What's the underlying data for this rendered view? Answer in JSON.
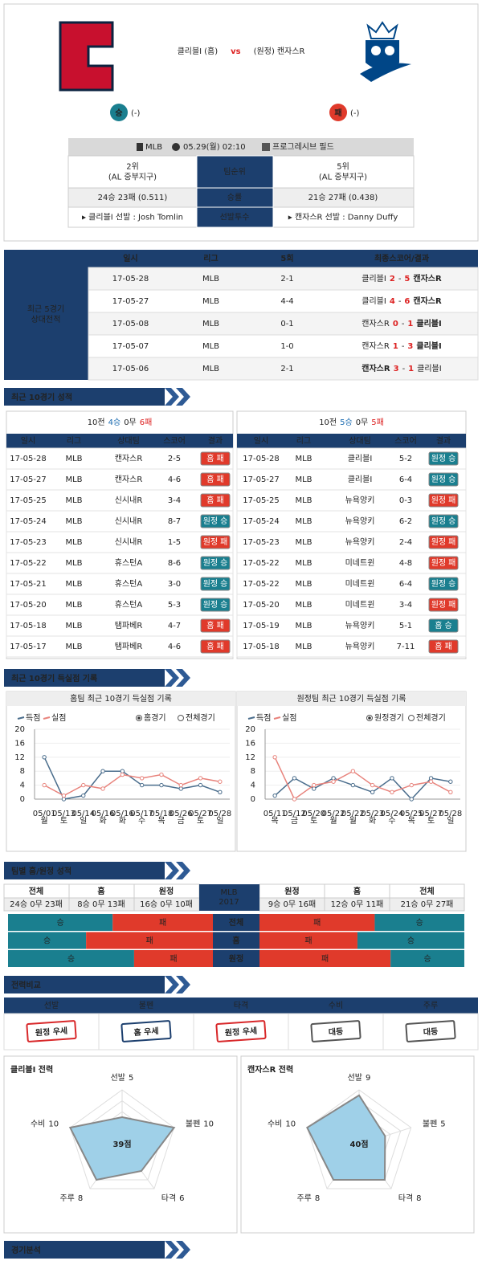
{
  "header": {
    "home_team": "클리블I",
    "home_tag": "(홈)",
    "vs": "vs",
    "away_tag": "(원정)",
    "away_team": "캔자스R",
    "home_result": "승",
    "home_result_detail": "(-)",
    "away_result": "패",
    "away_result_detail": "(-)"
  },
  "outcome_colors": {
    "승": "#1a7f8f",
    "패": "#e03a2b"
  },
  "info": {
    "league": "MLB",
    "datetime": "05.29(월) 02:10",
    "stadium": "프로그레시브 필드",
    "rows": [
      {
        "label": "팀순위",
        "home": [
          "2위",
          "(AL 중부지구)"
        ],
        "away": [
          "5위",
          "(AL 중부지구)"
        ]
      },
      {
        "label": "승률",
        "home": [
          "24승 23패 (0.511)"
        ],
        "away": [
          "21승 27패 (0.438)"
        ]
      },
      {
        "label": "선발투수",
        "home": [
          "▸ 클리블I 선발 : Josh Tomlin"
        ],
        "away": [
          "▸ 캔자스R 선발 : Danny Duffy"
        ]
      }
    ]
  },
  "h2h": {
    "label": [
      "최근 5경기",
      "상대전적"
    ],
    "headers": [
      "일시",
      "리그",
      "5회",
      "최종스코어/결과"
    ],
    "score_sep": "-",
    "rows": [
      {
        "date": "17-05-28",
        "league": "MLB",
        "inning5": "2-1",
        "left": "클리블I",
        "left_score": 2,
        "right_score": 5,
        "right": "캔자스R"
      },
      {
        "date": "17-05-27",
        "league": "MLB",
        "inning5": "4-4",
        "left": "클리블I",
        "left_score": 4,
        "right_score": 6,
        "right": "캔자스R"
      },
      {
        "date": "17-05-08",
        "league": "MLB",
        "inning5": "0-1",
        "left": "캔자스R",
        "left_score": 0,
        "right_score": 1,
        "right": "클리블I"
      },
      {
        "date": "17-05-07",
        "league": "MLB",
        "inning5": "1-0",
        "left": "캔자스R",
        "left_score": 1,
        "right_score": 3,
        "right": "클리블I"
      },
      {
        "date": "17-05-06",
        "league": "MLB",
        "inning5": "2-1",
        "left": "캔자스R",
        "left_score": 3,
        "right_score": 1,
        "right": "클리블I"
      }
    ]
  },
  "sections": {
    "recent10": "최근 10경기 성적",
    "scoring": "최근 10경기 득실점 기록",
    "splits": "팀별 홈/원정 성적",
    "power": "전력비교",
    "analysis": "경기분석"
  },
  "recent10": {
    "headers": [
      "일시",
      "리그",
      "상대팀",
      "스코어",
      "결과"
    ],
    "home": {
      "summary": [
        "10전",
        "4승",
        "0무",
        "6패"
      ],
      "rows": [
        {
          "date": "17-05-28",
          "league": "MLB",
          "opponent": "캔자스R",
          "score": "2-5",
          "venue": "홈",
          "outcome": "패"
        },
        {
          "date": "17-05-27",
          "league": "MLB",
          "opponent": "캔자스R",
          "score": "4-6",
          "venue": "홈",
          "outcome": "패"
        },
        {
          "date": "17-05-25",
          "league": "MLB",
          "opponent": "신시내R",
          "score": "3-4",
          "venue": "홈",
          "outcome": "패"
        },
        {
          "date": "17-05-24",
          "league": "MLB",
          "opponent": "신시내R",
          "score": "8-7",
          "venue": "원정",
          "outcome": "승"
        },
        {
          "date": "17-05-23",
          "league": "MLB",
          "opponent": "신시내R",
          "score": "1-5",
          "venue": "원정",
          "outcome": "패"
        },
        {
          "date": "17-05-22",
          "league": "MLB",
          "opponent": "휴스턴A",
          "score": "8-6",
          "venue": "원정",
          "outcome": "승"
        },
        {
          "date": "17-05-21",
          "league": "MLB",
          "opponent": "휴스턴A",
          "score": "3-0",
          "venue": "원정",
          "outcome": "승"
        },
        {
          "date": "17-05-20",
          "league": "MLB",
          "opponent": "휴스턴A",
          "score": "5-3",
          "venue": "원정",
          "outcome": "승"
        },
        {
          "date": "17-05-18",
          "league": "MLB",
          "opponent": "탬파베R",
          "score": "4-7",
          "venue": "홈",
          "outcome": "패"
        },
        {
          "date": "17-05-17",
          "league": "MLB",
          "opponent": "탬파베R",
          "score": "4-6",
          "venue": "홈",
          "outcome": "패"
        }
      ]
    },
    "away": {
      "summary": [
        "10전",
        "5승",
        "0무",
        "5패"
      ],
      "rows": [
        {
          "date": "17-05-28",
          "league": "MLB",
          "opponent": "클리블I",
          "score": "5-2",
          "venue": "원정",
          "outcome": "승"
        },
        {
          "date": "17-05-27",
          "league": "MLB",
          "opponent": "클리블I",
          "score": "6-4",
          "venue": "원정",
          "outcome": "승"
        },
        {
          "date": "17-05-25",
          "league": "MLB",
          "opponent": "뉴욕양키",
          "score": "0-3",
          "venue": "원정",
          "outcome": "패"
        },
        {
          "date": "17-05-24",
          "league": "MLB",
          "opponent": "뉴욕양키",
          "score": "6-2",
          "venue": "원정",
          "outcome": "승"
        },
        {
          "date": "17-05-23",
          "league": "MLB",
          "opponent": "뉴욕양키",
          "score": "2-4",
          "venue": "원정",
          "outcome": "패"
        },
        {
          "date": "17-05-22",
          "league": "MLB",
          "opponent": "미네트윈",
          "score": "4-8",
          "venue": "원정",
          "outcome": "패"
        },
        {
          "date": "17-05-22",
          "league": "MLB",
          "opponent": "미네트윈",
          "score": "6-4",
          "venue": "원정",
          "outcome": "승"
        },
        {
          "date": "17-05-20",
          "league": "MLB",
          "opponent": "미네트윈",
          "score": "3-4",
          "venue": "원정",
          "outcome": "패"
        },
        {
          "date": "17-05-19",
          "league": "MLB",
          "opponent": "뉴욕양키",
          "score": "5-1",
          "venue": "홈",
          "outcome": "승"
        },
        {
          "date": "17-05-18",
          "league": "MLB",
          "opponent": "뉴욕양키",
          "score": "7-11",
          "venue": "홈",
          "outcome": "패"
        }
      ]
    }
  },
  "chart_data": [
    {
      "type": "line",
      "title": "홈팀 최근 10경기 득실점 기록",
      "options": [
        "홈경기",
        "전체경기"
      ],
      "selected": 0,
      "categories": [
        "05/01",
        "05/13",
        "05/14",
        "05/16",
        "05/16",
        "05/17",
        "05/18",
        "05/26",
        "05/27",
        "05/28"
      ],
      "category_sublabels": [
        "월",
        "토",
        "일",
        "화",
        "화",
        "수",
        "목",
        "금",
        "토",
        "일"
      ],
      "ylim": [
        0,
        20
      ],
      "yticks": [
        0,
        4,
        8,
        12,
        16,
        20
      ],
      "grid": true,
      "series": [
        {
          "name": "득점",
          "color": "#4a6d8c",
          "values": [
            12,
            0,
            1,
            8,
            8,
            4,
            4,
            3,
            4,
            2
          ]
        },
        {
          "name": "실점",
          "color": "#e8837c",
          "values": [
            4,
            1,
            4,
            3,
            7,
            6,
            7,
            4,
            6,
            5
          ]
        }
      ]
    },
    {
      "type": "line",
      "title": "원정팀 최근 10경기 득실점 기록",
      "options": [
        "원정경기",
        "전체경기"
      ],
      "selected": 0,
      "categories": [
        "05/11",
        "05/12",
        "05/20",
        "05/22",
        "05/22",
        "05/23",
        "05/24",
        "05/25",
        "05/27",
        "05/28"
      ],
      "category_sublabels": [
        "목",
        "금",
        "토",
        "월",
        "월",
        "화",
        "수",
        "목",
        "토",
        "일"
      ],
      "ylim": [
        0,
        20
      ],
      "yticks": [
        0,
        4,
        8,
        12,
        16,
        20
      ],
      "grid": true,
      "series": [
        {
          "name": "득점",
          "color": "#4a6d8c",
          "values": [
            1,
            6,
            3,
            6,
            4,
            2,
            6,
            0,
            6,
            5
          ]
        },
        {
          "name": "실점",
          "color": "#e8837c",
          "values": [
            12,
            0,
            4,
            5,
            8,
            4,
            2,
            4,
            5,
            2
          ]
        }
      ]
    },
    {
      "type": "radar",
      "title": "클리블I 전력",
      "categories": [
        "선발",
        "불펜",
        "타격",
        "주루",
        "수비"
      ],
      "values": [
        5,
        10,
        6,
        8,
        10
      ],
      "ylim": [
        0,
        10
      ],
      "total_label": "39점",
      "color": "#9fd0e8"
    },
    {
      "type": "radar",
      "title": "캔자스R 전력",
      "categories": [
        "선발",
        "불펜",
        "타격",
        "주루",
        "수비"
      ],
      "values": [
        9,
        5,
        8,
        8,
        10
      ],
      "ylim": [
        0,
        10
      ],
      "total_label": "40점",
      "color": "#9fd0e8"
    }
  ],
  "splits": {
    "home_headers": [
      "전체",
      "홈",
      "원정"
    ],
    "home_records": [
      "24승 0무 23패",
      "8승 0무 13패",
      "16승 0무 10패"
    ],
    "center": [
      "MLB",
      "2017"
    ],
    "away_headers": [
      "원정",
      "홈",
      "전체"
    ],
    "away_records": [
      "9승 0무 16패",
      "12승 0무 11패",
      "21승 0무 27패"
    ],
    "bar_labels": [
      "승",
      "패"
    ],
    "rows": [
      {
        "label": "전체",
        "home_wins": 24,
        "home_losses": 23,
        "away_wins": 21,
        "away_losses": 27
      },
      {
        "label": "홈",
        "home_wins": 8,
        "home_losses": 13,
        "away_wins": 12,
        "away_losses": 11
      },
      {
        "label": "원정",
        "home_wins": 16,
        "home_losses": 10,
        "away_wins": 9,
        "away_losses": 16
      }
    ]
  },
  "power": {
    "headers": [
      "선발",
      "불펜",
      "타격",
      "수비",
      "주루"
    ],
    "badges": [
      "원정 우세",
      "홈 우세",
      "원정 우세",
      "대등",
      "대등"
    ],
    "badge_colors": {
      "원정 우세": "#d8282a",
      "홈 우세": "#1c3f6e",
      "대등": "#555555"
    }
  }
}
